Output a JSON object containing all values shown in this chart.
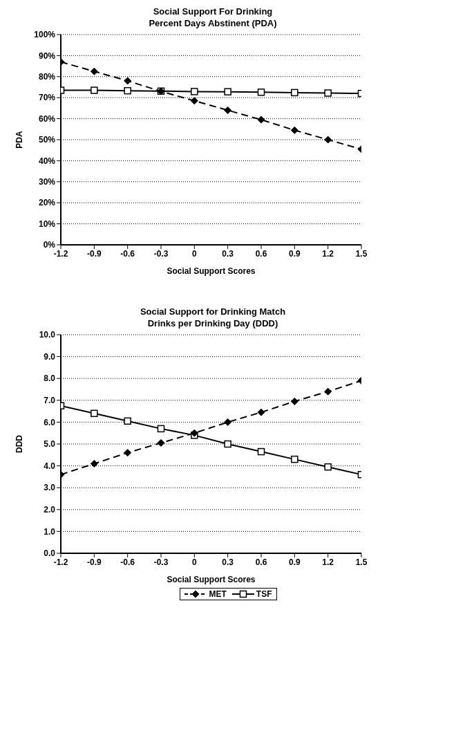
{
  "chart_data": [
    {
      "type": "line",
      "title": "Social Support For Drinking\nPercent Days Abstinent (PDA)",
      "xlabel": "Social Support Scores",
      "ylabel": "PDA",
      "x": [
        -1.2,
        -0.9,
        -0.6,
        -0.3,
        0,
        0.3,
        0.6,
        0.9,
        1.2,
        1.5
      ],
      "xlim": [
        -1.2,
        1.5
      ],
      "xticks": [
        -1.2,
        -0.9,
        -0.6,
        -0.3,
        0,
        0.3,
        0.6,
        0.9,
        1.2,
        1.5
      ],
      "ylim": [
        0,
        100
      ],
      "yticks": [
        {
          "value": 0,
          "label": "0%"
        },
        {
          "value": 10,
          "label": "10%"
        },
        {
          "value": 20,
          "label": "20%"
        },
        {
          "value": 30,
          "label": "30%"
        },
        {
          "value": 40,
          "label": "40%"
        },
        {
          "value": 50,
          "label": "50%"
        },
        {
          "value": 60,
          "label": "60%"
        },
        {
          "value": 70,
          "label": "70%"
        },
        {
          "value": 80,
          "label": "80%"
        },
        {
          "value": 90,
          "label": "90%"
        },
        {
          "value": 100,
          "label": "100%"
        }
      ],
      "grid": "y",
      "legend": false,
      "series": [
        {
          "color": "#000000",
          "marker": "diamond",
          "line_style": "dashed",
          "values": [
            87,
            82.5,
            78,
            73,
            68.5,
            64,
            59.5,
            54.5,
            50,
            45.5
          ]
        },
        {
          "color": "#000000",
          "marker": "square",
          "line_style": "solid",
          "values": [
            73.5,
            73.5,
            73.3,
            73.1,
            72.9,
            72.8,
            72.6,
            72.4,
            72.2,
            72
          ]
        }
      ]
    },
    {
      "type": "line",
      "title": "Social Support for Drinking Match\nDrinks per Drinking Day (DDD)",
      "xlabel": "Social Support Scores",
      "ylabel": "DDD",
      "x": [
        -1.2,
        -0.9,
        -0.6,
        -0.3,
        0,
        0.3,
        0.6,
        0.9,
        1.2,
        1.5
      ],
      "xlim": [
        -1.2,
        1.5
      ],
      "xticks": [
        -1.2,
        -0.9,
        -0.6,
        -0.3,
        0,
        0.3,
        0.6,
        0.9,
        1.2,
        1.5
      ],
      "ylim": [
        0,
        10
      ],
      "yticks": [
        {
          "value": 0,
          "label": "0.0"
        },
        {
          "value": 1,
          "label": "1.0"
        },
        {
          "value": 2,
          "label": "2.0"
        },
        {
          "value": 3,
          "label": "3.0"
        },
        {
          "value": 4,
          "label": "4.0"
        },
        {
          "value": 5,
          "label": "5.0"
        },
        {
          "value": 6,
          "label": "6.0"
        },
        {
          "value": 7,
          "label": "7.0"
        },
        {
          "value": 8,
          "label": "8.0"
        },
        {
          "value": 9,
          "label": "9.0"
        },
        {
          "value": 10,
          "label": "10.0"
        }
      ],
      "grid": "y",
      "legend": "bottom",
      "series": [
        {
          "name": "MET",
          "color": "#000000",
          "marker": "diamond",
          "line_style": "dashed",
          "values": [
            3.6,
            4.1,
            4.6,
            5.05,
            5.5,
            6.0,
            6.45,
            6.95,
            7.4,
            7.9
          ]
        },
        {
          "name": "TSF",
          "color": "#000000",
          "marker": "square",
          "line_style": "solid",
          "values": [
            6.75,
            6.4,
            6.05,
            5.7,
            5.4,
            5.0,
            4.65,
            4.3,
            3.95,
            3.6
          ]
        }
      ]
    }
  ]
}
